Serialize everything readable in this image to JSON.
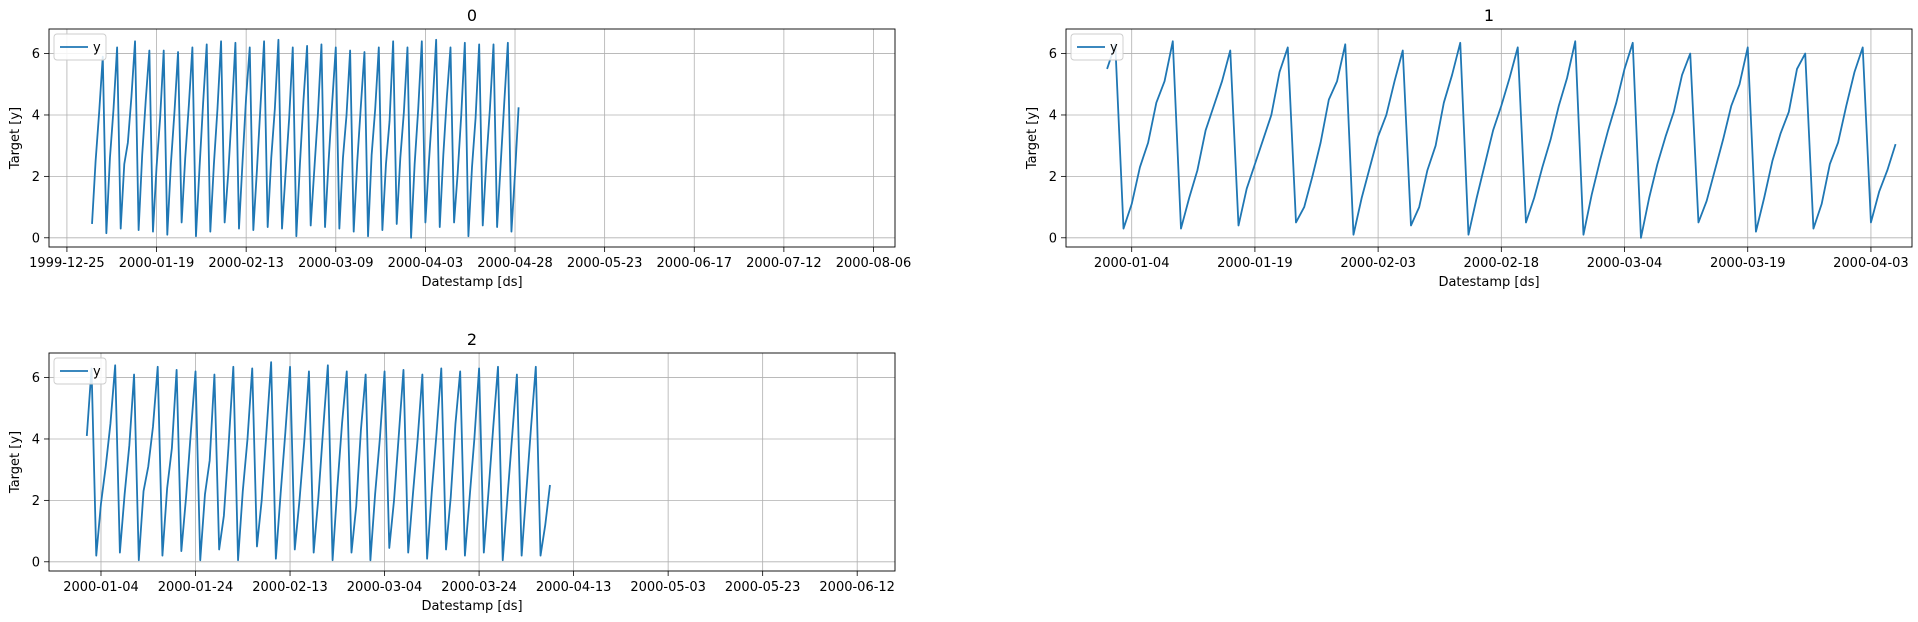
{
  "chart_data": [
    {
      "type": "line",
      "title": "0",
      "xlabel": "Datestamp [ds]",
      "ylabel": "Target [y]",
      "legend": "y",
      "legend_placement": "upper-left",
      "grid": true,
      "line_color": "#1f77b4",
      "x_range": [
        "1999-12-20",
        "2000-08-12"
      ],
      "ylim": [
        -0.3,
        6.8
      ],
      "x_ticks": [
        "1999-12-25",
        "2000-01-19",
        "2000-02-13",
        "2000-03-09",
        "2000-04-03",
        "2000-04-28",
        "2000-05-23",
        "2000-06-17",
        "2000-07-12",
        "2000-08-06"
      ],
      "y_ticks": [
        0,
        2,
        4,
        6
      ],
      "series": [
        {
          "x_start": "2000-01-01",
          "x_step_days": 1,
          "values": [
            0.45,
            2.5,
            4.1,
            5.9,
            0.15,
            2.6,
            4.2,
            6.2,
            0.3,
            2.4,
            3.1,
            4.6,
            6.4,
            0.25,
            2.7,
            4.5,
            6.1,
            0.2,
            2.3,
            3.9,
            6.1,
            0.1,
            2.4,
            4.1,
            6.05,
            0.5,
            2.6,
            4.3,
            6.2,
            0.05,
            2.3,
            4.4,
            6.3,
            0.2,
            2.4,
            4.2,
            6.4,
            0.5,
            2.1,
            4.1,
            6.35,
            0.3,
            2.5,
            4.6,
            6.2,
            0.25,
            2.2,
            4.3,
            6.4,
            0.35,
            2.6,
            4.2,
            6.45,
            0.3,
            2.1,
            3.9,
            6.2,
            0.05,
            2.4,
            4.5,
            6.25,
            0.4,
            2.2,
            4.0,
            6.3,
            0.35,
            2.5,
            4.4,
            6.2,
            0.3,
            2.6,
            4.0,
            6.1,
            0.2,
            2.5,
            4.3,
            6.05,
            0.05,
            2.7,
            4.2,
            6.2,
            0.25,
            2.4,
            3.8,
            6.4,
            0.45,
            2.6,
            4.1,
            6.2,
            0.0,
            2.4,
            4.2,
            6.4,
            0.5,
            2.5,
            4.3,
            6.45,
            0.35,
            2.7,
            4.6,
            6.2,
            0.5,
            2.1,
            4.0,
            6.35,
            0.05,
            2.3,
            3.9,
            6.3,
            0.4,
            2.5,
            4.2,
            6.3,
            0.35,
            2.4,
            4.4,
            6.35,
            0.2,
            2.1,
            4.25
          ]
        }
      ]
    },
    {
      "type": "line",
      "title": "1",
      "xlabel": "Datestamp [ds]",
      "ylabel": "Target [y]",
      "legend": "y",
      "legend_placement": "upper-left",
      "grid": true,
      "line_color": "#1f77b4",
      "x_range": [
        "1999-12-27",
        "2000-04-08"
      ],
      "ylim": [
        -0.3,
        6.8
      ],
      "x_ticks": [
        "2000-01-04",
        "2000-01-19",
        "2000-02-03",
        "2000-02-18",
        "2000-03-04",
        "2000-03-19",
        "2000-04-03"
      ],
      "y_ticks": [
        0,
        2,
        4,
        6
      ],
      "series": [
        {
          "x_start": "2000-01-01",
          "x_step_days": 1,
          "values": [
            5.5,
            6.3,
            0.3,
            1.1,
            2.3,
            3.1,
            4.4,
            5.1,
            6.4,
            0.3,
            1.3,
            2.2,
            3.5,
            4.3,
            5.1,
            6.1,
            0.4,
            1.6,
            2.4,
            3.2,
            4.0,
            5.4,
            6.2,
            0.5,
            1.0,
            2.0,
            3.1,
            4.5,
            5.1,
            6.3,
            0.1,
            1.3,
            2.3,
            3.3,
            4.0,
            5.1,
            6.1,
            0.4,
            1.0,
            2.2,
            3.0,
            4.4,
            5.3,
            6.35,
            0.1,
            1.3,
            2.4,
            3.5,
            4.3,
            5.2,
            6.2,
            0.5,
            1.3,
            2.3,
            3.2,
            4.3,
            5.2,
            6.4,
            0.1,
            1.4,
            2.5,
            3.5,
            4.4,
            5.5,
            6.35,
            0.0,
            1.3,
            2.4,
            3.3,
            4.1,
            5.3,
            6.0,
            0.5,
            1.2,
            2.2,
            3.2,
            4.3,
            5.0,
            6.2,
            0.2,
            1.3,
            2.5,
            3.4,
            4.1,
            5.5,
            6.0,
            0.3,
            1.1,
            2.4,
            3.1,
            4.3,
            5.4,
            6.2,
            0.5,
            1.5,
            2.2,
            3.05
          ]
        }
      ]
    },
    {
      "type": "line",
      "title": "2",
      "xlabel": "Datestamp [ds]",
      "ylabel": "Target [y]",
      "legend": "y",
      "legend_placement": "upper-left",
      "grid": true,
      "line_color": "#1f77b4",
      "x_range": [
        "1999-12-24",
        "2000-06-20"
      ],
      "ylim": [
        -0.3,
        6.8
      ],
      "x_ticks": [
        "2000-01-04",
        "2000-01-24",
        "2000-02-13",
        "2000-03-04",
        "2000-03-24",
        "2000-04-13",
        "2000-05-03",
        "2000-05-23",
        "2000-06-12"
      ],
      "y_ticks": [
        0,
        2,
        4,
        6
      ],
      "series": [
        {
          "x_start": "2000-01-01",
          "x_step_days": 1,
          "values": [
            4.1,
            6.3,
            0.2,
            1.9,
            3.1,
            4.5,
            6.4,
            0.3,
            2.2,
            3.8,
            6.1,
            0.05,
            2.3,
            3.1,
            4.4,
            6.35,
            0.2,
            2.4,
            3.7,
            6.25,
            0.35,
            2.1,
            4.2,
            6.2,
            0.05,
            2.2,
            3.3,
            6.1,
            0.4,
            1.5,
            3.8,
            6.35,
            0.05,
            2.3,
            4.0,
            6.3,
            0.5,
            2.0,
            4.2,
            6.5,
            0.1,
            2.2,
            4.2,
            6.35,
            0.4,
            2.0,
            3.9,
            6.2,
            0.3,
            2.1,
            4.3,
            6.4,
            0.05,
            2.4,
            4.5,
            6.2,
            0.3,
            1.8,
            4.3,
            6.1,
            0.05,
            2.2,
            4.0,
            6.2,
            0.45,
            2.0,
            4.1,
            6.25,
            0.3,
            2.2,
            4.0,
            6.1,
            0.1,
            2.3,
            4.2,
            6.3,
            0.4,
            2.1,
            4.5,
            6.2,
            0.2,
            2.1,
            4.0,
            6.3,
            0.3,
            2.3,
            4.4,
            6.35,
            0.05,
            2.1,
            4.1,
            6.1,
            0.2,
            2.3,
            4.4,
            6.35,
            0.2,
            1.2,
            2.5
          ]
        }
      ]
    }
  ]
}
